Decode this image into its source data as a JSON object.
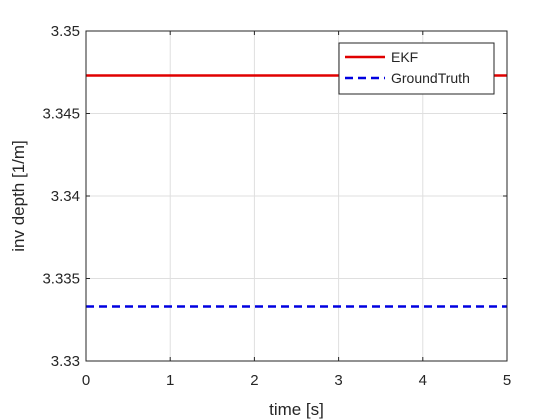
{
  "chart_data": {
    "type": "line",
    "title": "",
    "xlabel": "time [s]",
    "ylabel": "inv depth [1/m]",
    "xlim": [
      0,
      5
    ],
    "ylim": [
      3.33,
      3.35
    ],
    "x_ticks": [
      0,
      1,
      2,
      3,
      4,
      5
    ],
    "x_tick_labels": [
      "0",
      "1",
      "2",
      "3",
      "4",
      "5"
    ],
    "y_ticks": [
      3.33,
      3.335,
      3.34,
      3.345,
      3.35
    ],
    "y_tick_labels": [
      "3.33",
      "3.335",
      "3.34",
      "3.345",
      "3.35"
    ],
    "grid": true,
    "legend_position": "top-right",
    "series": [
      {
        "name": "EKF",
        "color": "#e00000",
        "line_style": "solid",
        "x": [
          0,
          5
        ],
        "y": [
          3.3473,
          3.3473
        ]
      },
      {
        "name": "GroundTruth",
        "color": "#0000e0",
        "line_style": "dashed",
        "x": [
          0,
          5
        ],
        "y": [
          3.3333,
          3.3333
        ]
      }
    ]
  }
}
